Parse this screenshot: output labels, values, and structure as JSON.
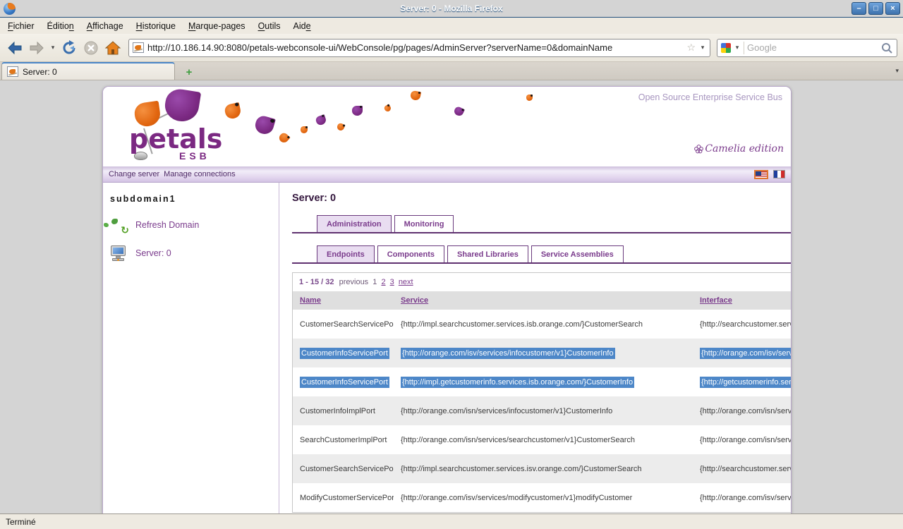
{
  "window": {
    "title": "Server: 0 - Mozilla Firefox"
  },
  "icons": {
    "minimize": "–",
    "maximize": "□",
    "close": "×",
    "dropdown_caret": "▾",
    "bookmark_star": "☆",
    "new_tab_plus": "+",
    "refresh_arrow": "↻",
    "edition_flower": "✾"
  },
  "menubar": {
    "items": [
      {
        "pre": "",
        "key": "F",
        "post": "ichier"
      },
      {
        "pre": "Éditio",
        "key": "n",
        "post": ""
      },
      {
        "pre": "",
        "key": "A",
        "post": "ffichage"
      },
      {
        "pre": "",
        "key": "H",
        "post": "istorique"
      },
      {
        "pre": "",
        "key": "M",
        "post": "arque-pages"
      },
      {
        "pre": "",
        "key": "O",
        "post": "utils"
      },
      {
        "pre": "Aid",
        "key": "e",
        "post": ""
      }
    ]
  },
  "toolbar": {
    "url": "http://10.186.14.90:8080/petals-webconsole-ui/WebConsole/pg/pages/AdminServer?serverName=0&domainName",
    "search_placeholder": "Google"
  },
  "tabbar": {
    "active_tab": "Server: 0"
  },
  "page": {
    "tagline": "Open Source Enterprise Service Bus",
    "logo_text": "petals",
    "logo_sub": "ESB",
    "edition": "Camelia edition",
    "navbar": {
      "links": [
        "Change server",
        "Manage connections"
      ]
    },
    "sidebar": {
      "domain": "subdomain1",
      "items": [
        {
          "label": "Refresh Domain",
          "icon": "globe-refresh-icon"
        },
        {
          "label": "Server: 0",
          "icon": "computer-icon"
        }
      ]
    },
    "main": {
      "title": "Server: 0",
      "tabs": [
        {
          "label": "Administration",
          "active": true
        },
        {
          "label": "Monitoring",
          "active": false
        }
      ],
      "subtabs": [
        {
          "label": "Endpoints",
          "active": true
        },
        {
          "label": "Components",
          "active": false
        },
        {
          "label": "Shared Libraries",
          "active": false
        },
        {
          "label": "Service Assemblies",
          "active": false
        }
      ],
      "pagination": {
        "range": "1 - 15 / 32",
        "previous_label": "previous",
        "current_page": "1",
        "page_links": [
          "2",
          "3"
        ],
        "next_label": "next"
      },
      "table": {
        "headers": [
          "Name",
          "Service",
          "Interface"
        ],
        "rows": [
          {
            "name": "CustomerSearchServicePort",
            "service": "{http://impl.searchcustomer.services.isb.orange.com/}CustomerSearch",
            "interface": "{http://searchcustomer.service",
            "selected": false
          },
          {
            "name": "CustomerInfoServicePort",
            "service": "{http://orange.com/isv/services/infocustomer/v1}CustomerInfo",
            "interface": "{http://orange.com/isv/service",
            "selected": true
          },
          {
            "name": "CustomerInfoServicePort",
            "service": "{http://impl.getcustomerinfo.services.isb.orange.com/}CustomerInfo",
            "interface": "{http://getcustomerinfo.servic",
            "selected": true
          },
          {
            "name": "CustomerInfoImplPort",
            "service": "{http://orange.com/isn/services/infocustomer/v1}CustomerInfo",
            "interface": "{http://orange.com/isn/service",
            "selected": false
          },
          {
            "name": "SearchCustomerImplPort",
            "service": "{http://orange.com/isn/services/searchcustomer/v1}CustomerSearch",
            "interface": "{http://orange.com/isn/service",
            "selected": false
          },
          {
            "name": "CustomerSearchServicePort",
            "service": "{http://impl.searchcustomer.services.isv.orange.com/}CustomerSearch",
            "interface": "{http://searchcustomer.service",
            "selected": false
          },
          {
            "name": "ModifyCustomerServicePort",
            "service": "{http://orange.com/isv/services/modifycustomer/v1}modifyCustomer",
            "interface": "{http://orange.com/isv/service",
            "selected": false
          }
        ]
      }
    }
  },
  "statusbar": {
    "text": "Terminé"
  },
  "colors": {
    "titlebar_blue": "#3f74ae",
    "accent_purple": "#7a3b8c",
    "tab_line_purple": "#5f3170",
    "selection_blue": "#4d87c8",
    "tagline_purple": "#a795bf",
    "petal_orange": "#e1650f",
    "petal_purple": "#7b2982"
  }
}
